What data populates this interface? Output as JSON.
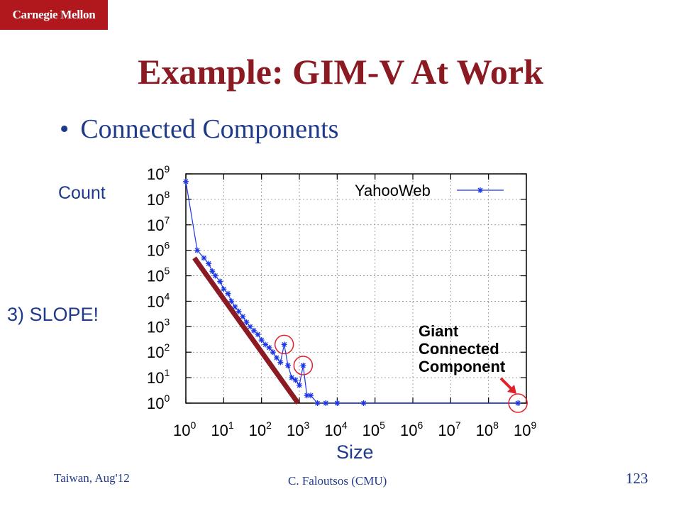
{
  "logo": "Carnegie Mellon",
  "title": "Example: GIM-V At Work",
  "bullet": "Connected Components",
  "annotations": {
    "count": "Count",
    "slope": "3) SLOPE!",
    "size": "Size",
    "giant": [
      "Giant",
      "Connected",
      "Component"
    ]
  },
  "footer": {
    "left": "Taiwan, Aug'12",
    "center": "C. Faloutsos (CMU)",
    "page": "123"
  },
  "colors": {
    "accent": "#b0181e",
    "title": "#8b1a22",
    "text": "#1f3a8a",
    "series": "#1a35e8",
    "slope_line": "#8b1a22",
    "circle": "#e0202a"
  },
  "chart_data": {
    "type": "scatter",
    "x_scale": "log",
    "y_scale": "log",
    "xlabel": "Size",
    "ylabel": "Count",
    "x_ticks": [
      {
        "base": "10",
        "exp": "0"
      },
      {
        "base": "10",
        "exp": "1"
      },
      {
        "base": "10",
        "exp": "2"
      },
      {
        "base": "10",
        "exp": "3"
      },
      {
        "base": "10",
        "exp": "4"
      },
      {
        "base": "10",
        "exp": "5"
      },
      {
        "base": "10",
        "exp": "6"
      },
      {
        "base": "10",
        "exp": "7"
      },
      {
        "base": "10",
        "exp": "8"
      },
      {
        "base": "10",
        "exp": "9"
      }
    ],
    "y_ticks": [
      {
        "base": "10",
        "exp": "0"
      },
      {
        "base": "10",
        "exp": "1"
      },
      {
        "base": "10",
        "exp": "2"
      },
      {
        "base": "10",
        "exp": "3"
      },
      {
        "base": "10",
        "exp": "4"
      },
      {
        "base": "10",
        "exp": "5"
      },
      {
        "base": "10",
        "exp": "6"
      },
      {
        "base": "10",
        "exp": "7"
      },
      {
        "base": "10",
        "exp": "8"
      },
      {
        "base": "10",
        "exp": "9"
      }
    ],
    "xlim": [
      1,
      1000000000
    ],
    "ylim": [
      1,
      1000000000
    ],
    "legend": "top-right",
    "series": [
      {
        "name": "YahooWeb",
        "points": [
          [
            1,
            500000000
          ],
          [
            2,
            1000000
          ],
          [
            3,
            500000
          ],
          [
            4,
            300000
          ],
          [
            5,
            150000
          ],
          [
            6,
            100000
          ],
          [
            8,
            60000
          ],
          [
            10,
            30000
          ],
          [
            13,
            20000
          ],
          [
            16,
            10000
          ],
          [
            20,
            6000
          ],
          [
            25,
            4000
          ],
          [
            32,
            2500
          ],
          [
            40,
            1500
          ],
          [
            50,
            1000
          ],
          [
            63,
            700
          ],
          [
            80,
            500
          ],
          [
            100,
            300
          ],
          [
            126,
            200
          ],
          [
            160,
            150
          ],
          [
            200,
            100
          ],
          [
            251,
            60
          ],
          [
            316,
            40
          ],
          [
            398,
            200
          ],
          [
            500,
            30
          ],
          [
            630,
            10
          ],
          [
            794,
            8
          ],
          [
            1000,
            5
          ],
          [
            1260,
            30
          ],
          [
            1585,
            2
          ],
          [
            2000,
            2
          ],
          [
            3000,
            1
          ],
          [
            5000,
            1
          ],
          [
            10000,
            1
          ],
          [
            50000,
            1
          ],
          [
            600000000,
            1
          ]
        ]
      }
    ],
    "slope_line": {
      "from": [
        1,
        500000
      ],
      "to": [
        600,
        1
      ]
    },
    "highlight_circles": [
      [
        398,
        200
      ],
      [
        1260,
        30
      ],
      [
        600000000,
        1
      ]
    ]
  }
}
